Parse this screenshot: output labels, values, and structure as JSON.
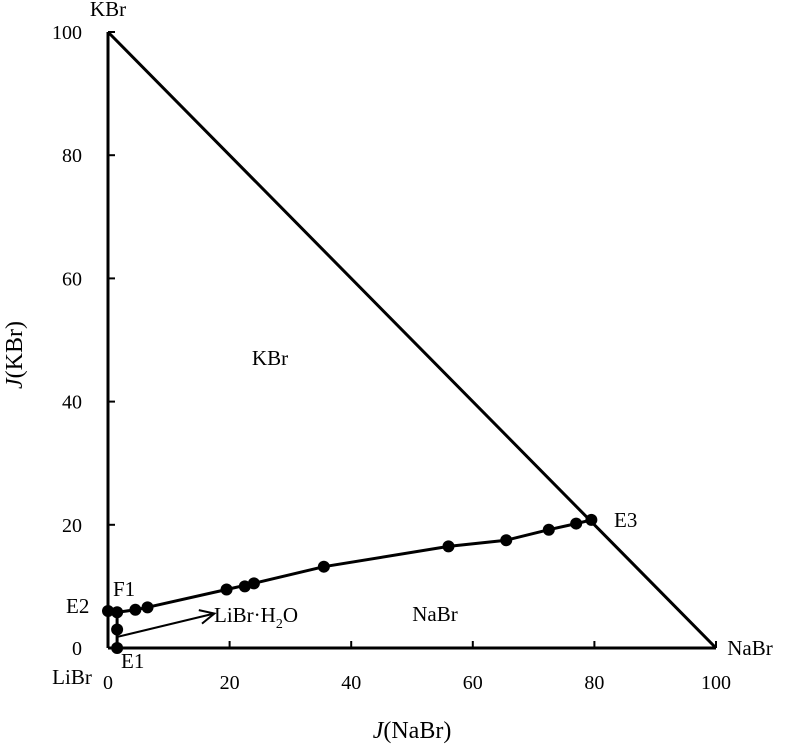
{
  "chart_data": {
    "type": "scatter",
    "subtype": "ternary phase diagram (LiBr-NaBr-KBr)",
    "xlabel_italic": "J",
    "xlabel_rest": "(NaBr)",
    "ylabel_italic": "J",
    "ylabel_rest": "(KBr)",
    "xlim": [
      0,
      100
    ],
    "ylim": [
      0,
      100
    ],
    "x_ticks": [
      "0",
      "20",
      "40",
      "60",
      "80",
      "100"
    ],
    "y_ticks": [
      "0",
      "20",
      "40",
      "60",
      "80",
      "100"
    ],
    "grid": false,
    "vertex_labels": {
      "origin": "LiBr",
      "top": "KBr",
      "right": "NaBr"
    },
    "region_labels": {
      "kbr": "KBr",
      "nabr": "NaBr"
    },
    "libr_label": {
      "base": "LiBr·H",
      "sub": "2",
      "tail": "O"
    },
    "points": [
      {
        "label": "E2",
        "x": 0,
        "y": 6.0
      },
      {
        "label": "F1",
        "x": 1.5,
        "y": 5.8
      },
      {
        "label": "",
        "x": 4.5,
        "y": 6.2
      },
      {
        "label": "",
        "x": 6.5,
        "y": 6.6
      },
      {
        "label": "",
        "x": 19.5,
        "y": 9.5
      },
      {
        "label": "",
        "x": 22.5,
        "y": 10.0
      },
      {
        "label": "",
        "x": 24.0,
        "y": 10.5
      },
      {
        "label": "",
        "x": 35.5,
        "y": 13.2
      },
      {
        "label": "",
        "x": 56.0,
        "y": 16.5
      },
      {
        "label": "",
        "x": 65.5,
        "y": 17.5
      },
      {
        "label": "",
        "x": 72.5,
        "y": 19.2
      },
      {
        "label": "",
        "x": 77.0,
        "y": 20.2
      },
      {
        "label": "E3",
        "x": 79.5,
        "y": 20.8
      },
      {
        "label": "",
        "x": 1.5,
        "y": 3.0
      },
      {
        "label": "E1",
        "x": 1.5,
        "y": 0
      }
    ],
    "curves": [
      {
        "name": "boundary",
        "x": [
          0,
          1.5,
          4.5,
          6.5,
          19.5,
          24.0,
          35.5,
          56.0,
          65.5,
          72.5,
          77.0,
          79.5
        ],
        "y": [
          6.0,
          5.8,
          6.2,
          6.6,
          9.5,
          10.5,
          13.2,
          16.5,
          17.5,
          19.2,
          20.2,
          20.8
        ]
      },
      {
        "name": "libr-boundary",
        "x": [
          1.5,
          1.5,
          1.5
        ],
        "y": [
          5.8,
          3.0,
          0
        ]
      }
    ],
    "arrow": {
      "from": [
        1.5,
        1.8
      ],
      "to": [
        17.5,
        5.6
      ]
    }
  }
}
